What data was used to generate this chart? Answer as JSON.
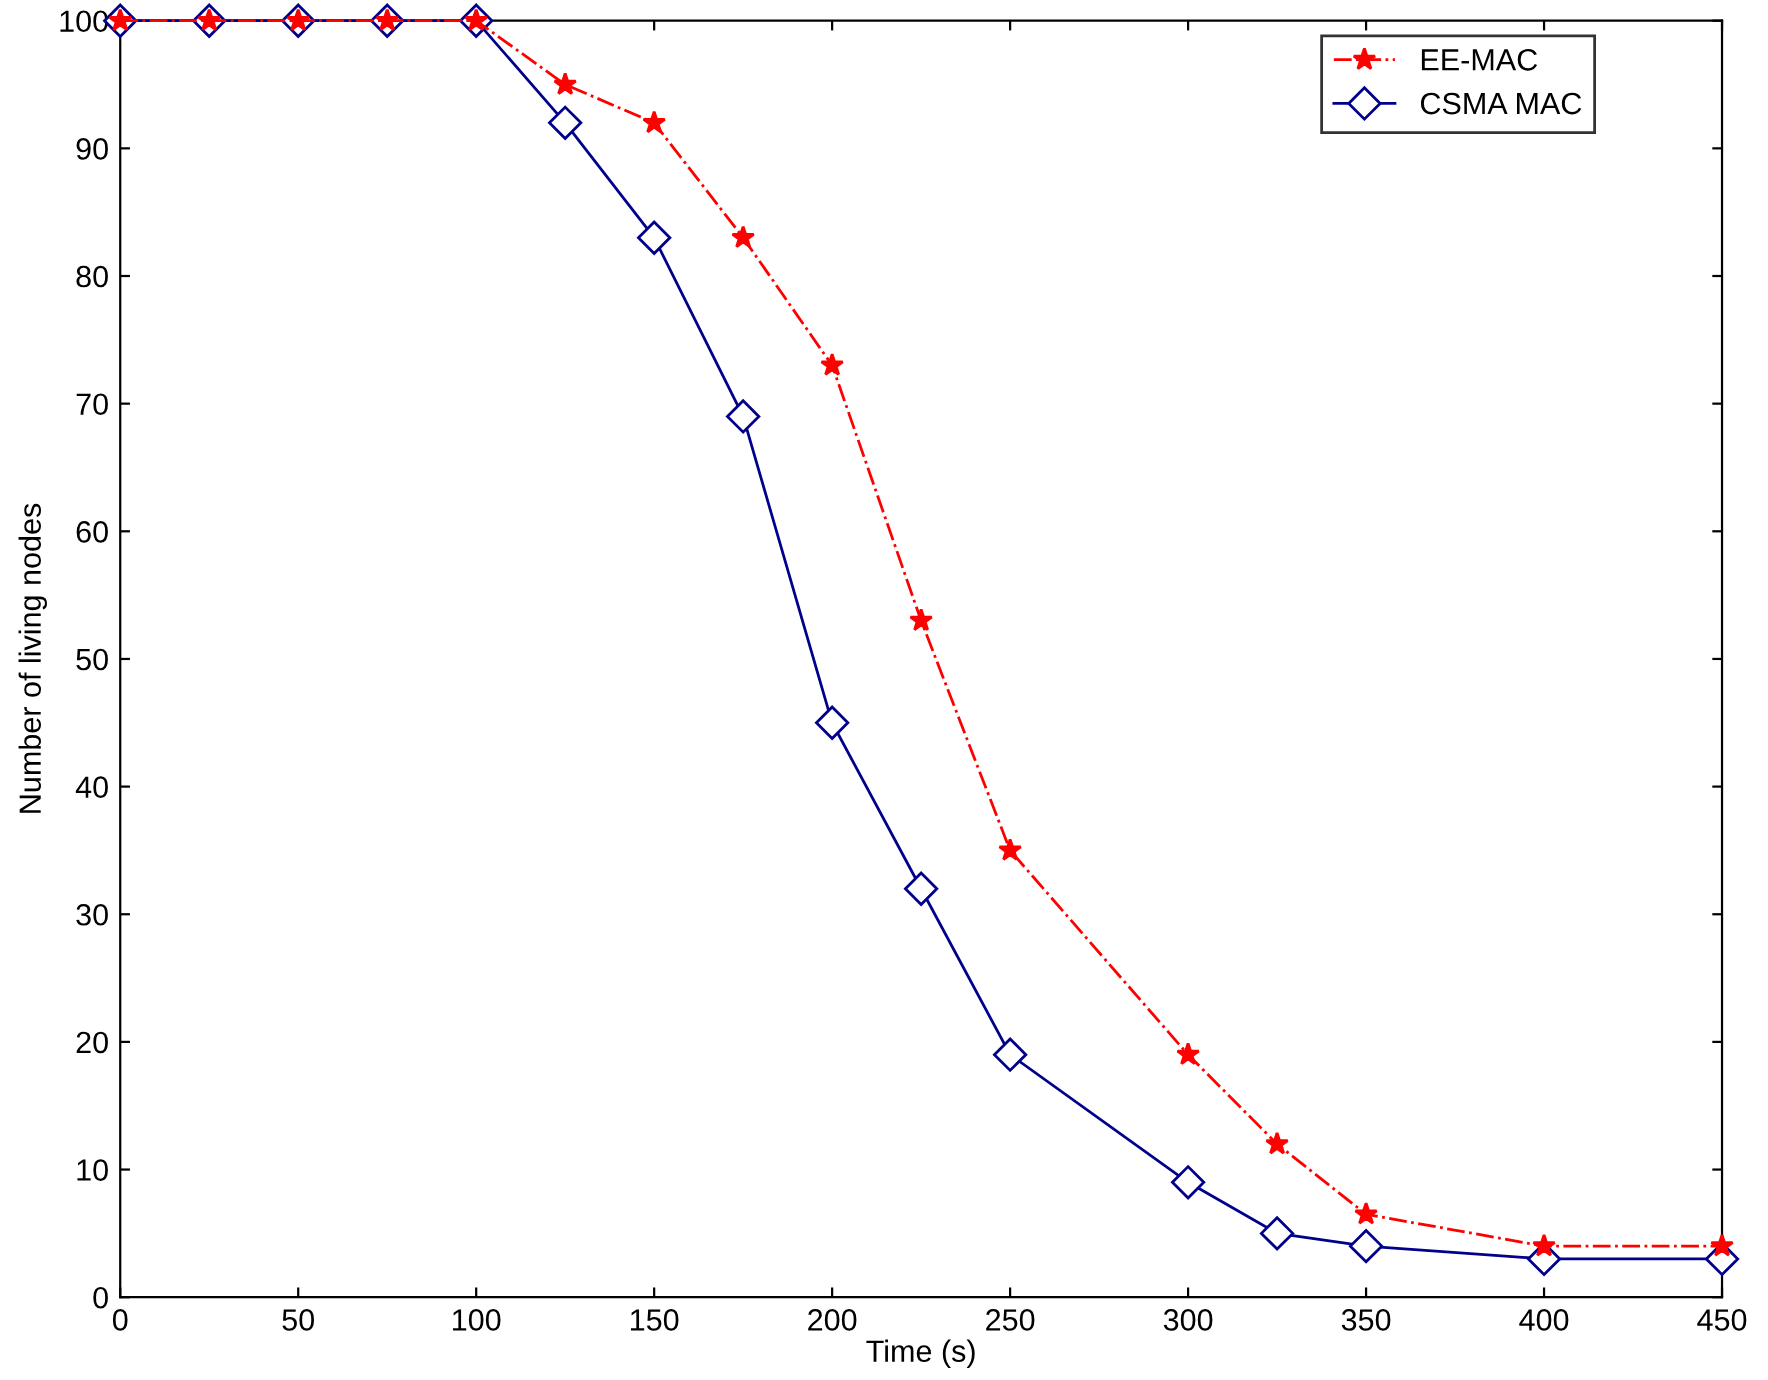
{
  "chart_data": {
    "type": "line",
    "xlabel": "Time (s)",
    "ylabel": "Number of living nodes",
    "x": [
      0,
      25,
      50,
      75,
      100,
      125,
      150,
      175,
      200,
      225,
      250,
      300,
      325,
      350,
      400,
      450
    ],
    "series": [
      {
        "name": "EE-MAC",
        "color": "#ff0000",
        "marker": "star",
        "line_style": "dashdot",
        "values": [
          100,
          100,
          100,
          100,
          100,
          95,
          92,
          83,
          73,
          53,
          35,
          19,
          12,
          6.5,
          4,
          4
        ]
      },
      {
        "name": "CSMA MAC",
        "color": "#00008b",
        "marker": "diamond",
        "line_style": "solid",
        "values": [
          100,
          100,
          100,
          100,
          100,
          92,
          83,
          69,
          45,
          32,
          19,
          9,
          5,
          4,
          3,
          3
        ]
      }
    ],
    "xlim": [
      0,
      450
    ],
    "xticks": [
      0,
      50,
      100,
      150,
      200,
      250,
      300,
      350,
      400,
      450
    ],
    "ylim": [
      0,
      100
    ],
    "yticks": [
      0,
      10,
      20,
      30,
      40,
      50,
      60,
      70,
      80,
      90,
      100
    ],
    "grid": false,
    "legend": "top right"
  }
}
